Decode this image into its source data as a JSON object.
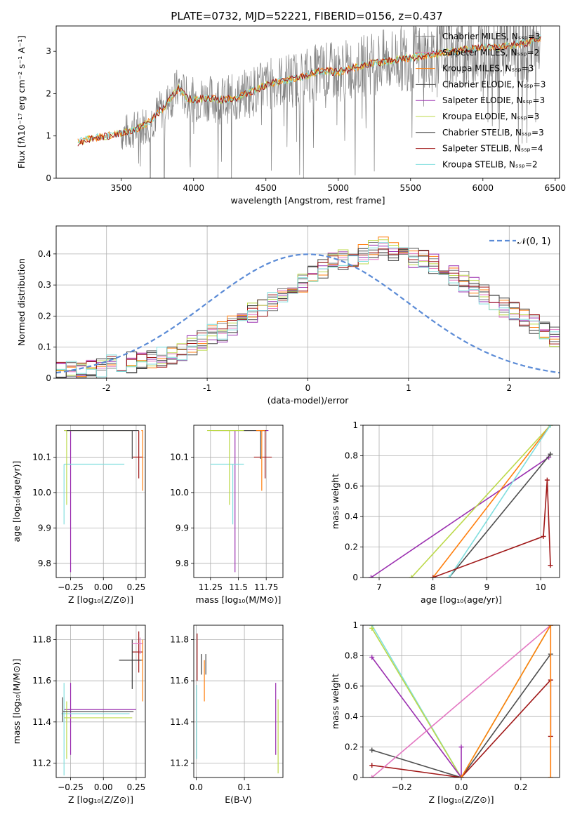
{
  "figure": {
    "title": "PLATE=0732, MJD=52221, FIBERID=0156, z=0.437"
  },
  "colors": {
    "chabrier_miles": "#7f7f7f",
    "salpeter_miles": "#e377c2",
    "kroupa_miles": "#ff7f0e",
    "chabrier_elodie": "#4d4d4d",
    "salpeter_elodie": "#9b30b0",
    "kroupa_elodie": "#bcd94a",
    "chabrier_stelib": "#3a3a3a",
    "salpeter_stelib": "#a01818",
    "kroupa_stelib": "#80dede",
    "normal": "#5b8bd6",
    "grid": "#b0b0b0"
  },
  "chart_data": [
    {
      "id": "spectrum",
      "type": "line",
      "xlabel": "wavelength [Angstrom, rest frame]",
      "ylabel": "Flux [fλ10⁻¹⁷ erg cm⁻² s⁻¹ A⁻¹]",
      "xlim": [
        3050,
        6530
      ],
      "ylim": [
        0,
        3.6
      ],
      "xticks": [
        3500,
        4000,
        4500,
        5000,
        5500,
        6000,
        6500
      ],
      "yticks": [
        0,
        1,
        2,
        3
      ],
      "legend": [
        "Chabrier MILES, Nₛₛₚ=3",
        "Salpeter MILES, Nₛₛₚ=2",
        "Kroupa MILES, Nₛₛₚ=3",
        "Chabrier ELODIE, Nₛₛₚ=3",
        "Salpeter ELODIE, Nₛₛₚ=3",
        "Kroupa ELODIE, Nₛₛₚ=3",
        "Chabrier STELIB, Nₛₛₚ=3",
        "Salpeter STELIB, Nₛₛₚ=4",
        "Kroupa STELIB, Nₛₛₚ=2"
      ],
      "legend_placement": "upper-right",
      "continuum": [
        [
          3200,
          0.85
        ],
        [
          3300,
          0.95
        ],
        [
          3400,
          1.0
        ],
        [
          3500,
          1.05
        ],
        [
          3600,
          1.15
        ],
        [
          3700,
          1.35
        ],
        [
          3800,
          1.7
        ],
        [
          3900,
          2.15
        ],
        [
          3950,
          1.9
        ],
        [
          4000,
          1.85
        ],
        [
          4100,
          1.9
        ],
        [
          4200,
          1.85
        ],
        [
          4300,
          1.9
        ],
        [
          4400,
          2.05
        ],
        [
          4500,
          2.2
        ],
        [
          4600,
          2.3
        ],
        [
          4700,
          2.35
        ],
        [
          4800,
          2.45
        ],
        [
          4900,
          2.55
        ],
        [
          5000,
          2.5
        ],
        [
          5100,
          2.6
        ],
        [
          5200,
          2.7
        ],
        [
          5300,
          2.75
        ],
        [
          5400,
          2.8
        ],
        [
          5500,
          2.85
        ],
        [
          5600,
          2.9
        ],
        [
          5700,
          2.95
        ],
        [
          5800,
          3.0
        ],
        [
          5900,
          3.05
        ],
        [
          6000,
          3.1
        ],
        [
          6100,
          3.1
        ],
        [
          6200,
          3.15
        ],
        [
          6300,
          3.2
        ],
        [
          6400,
          3.3
        ]
      ]
    },
    {
      "id": "residuals",
      "type": "step",
      "xlabel": "(data-model)/error",
      "ylabel": "Normed distribution",
      "xlim": [
        -2.5,
        2.5
      ],
      "ylim": [
        0,
        0.49
      ],
      "xticks": [
        -2,
        -1,
        0,
        1,
        2
      ],
      "yticks": [
        0.0,
        0.1,
        0.2,
        0.3,
        0.4
      ],
      "legend": [
        "𝒩(0, 1)"
      ],
      "legend_placement": "upper-right",
      "bin_width": 0.1,
      "base_hist": [
        0.02,
        0.02,
        0.03,
        0.03,
        0.03,
        0.04,
        0.04,
        0.05,
        0.05,
        0.06,
        0.07,
        0.08,
        0.09,
        0.11,
        0.12,
        0.14,
        0.15,
        0.17,
        0.19,
        0.21,
        0.23,
        0.25,
        0.27,
        0.29,
        0.31,
        0.33,
        0.35,
        0.37,
        0.38,
        0.39,
        0.4,
        0.41,
        0.42,
        0.41,
        0.4,
        0.39,
        0.38,
        0.37,
        0.35,
        0.33,
        0.31,
        0.29,
        0.27,
        0.25,
        0.23,
        0.21,
        0.19,
        0.17,
        0.15,
        0.13,
        0.12,
        0.1,
        0.09,
        0.08,
        0.07,
        0.06,
        0.05,
        0.05,
        0.04,
        0.04,
        0.03,
        0.03,
        0.03,
        0.02,
        0.02,
        0.02,
        0.02,
        0.02,
        0.02,
        0.02,
        0.02,
        0.02,
        0.02,
        0.02,
        0.02,
        0.02,
        0.02,
        0.02,
        0.02,
        0.02,
        0.02,
        0.02,
        0.02,
        0.02,
        0.02,
        0.02,
        0.02,
        0.02,
        0.02,
        0.02,
        0.02,
        0.02,
        0.02,
        0.02,
        0.02,
        0.02,
        0.02,
        0.02,
        0.02,
        0.02
      ]
    },
    {
      "id": "z_age",
      "type": "errorbar",
      "xlabel": "Z [log₁₀(Z/Z⊙)]",
      "ylabel": "age  [log₁₀(age/yr)]",
      "xlim": [
        -0.36,
        0.32
      ],
      "ylim": [
        9.76,
        10.19
      ],
      "xticks": [
        -0.25,
        0.0,
        0.25
      ],
      "xticklabels": [
        "−0.25",
        "0.00",
        "0.25"
      ],
      "yticks": [
        9.8,
        9.9,
        10.0,
        10.1
      ],
      "yticklabels": [
        "9.8",
        "9.9",
        "10.0",
        "10.1"
      ],
      "points": [
        {
          "series": "salpeter_elodie",
          "x": -0.25,
          "y": 10.175,
          "xerr": [
            0.05,
            0.5
          ],
          "yerr": [
            0.4,
            0
          ]
        },
        {
          "series": "kroupa_stelib",
          "x": -0.3,
          "y": 10.08,
          "xerr": [
            0,
            0.46
          ],
          "yerr": [
            0.17,
            0
          ]
        },
        {
          "series": "kroupa_elodie",
          "x": -0.28,
          "y": 10.175,
          "xerr": [
            0.02,
            0.5
          ],
          "yerr": [
            0.21,
            0
          ]
        },
        {
          "series": "salpeter_stelib",
          "x": 0.27,
          "y": 10.1,
          "xerr": [
            0.05,
            0.03
          ],
          "yerr": [
            0.06,
            0.075
          ]
        },
        {
          "series": "chabrier_elodie",
          "x": 0.22,
          "y": 10.175,
          "xerr": [
            0.5,
            0.05
          ],
          "yerr": [
            0.08,
            0
          ]
        },
        {
          "series": "kroupa_miles",
          "x": 0.3,
          "y": 10.175,
          "xerr": [
            0.01,
            0
          ],
          "yerr": [
            0.17,
            0
          ]
        }
      ]
    },
    {
      "id": "mass_age",
      "type": "errorbar",
      "xlabel": "mass [log₁₀(M/M⊙)]",
      "ylabel": "",
      "xlim": [
        11.1,
        11.9
      ],
      "ylim": [
        9.76,
        10.19
      ],
      "xticks": [
        11.25,
        11.5,
        11.75
      ],
      "yticks": [
        9.8,
        9.9,
        10.0,
        10.1
      ],
      "yticklabels": [
        "9.8",
        "9.9",
        "10.0",
        "10.1"
      ],
      "points": [
        {
          "series": "salpeter_elodie",
          "x": 11.47,
          "y": 10.175,
          "xerr": [
            0.2,
            0.3
          ],
          "yerr": [
            0.4,
            0
          ]
        },
        {
          "series": "kroupa_stelib",
          "x": 11.45,
          "y": 10.08,
          "xerr": [
            0.2,
            0.1
          ],
          "yerr": [
            0.17,
            0
          ]
        },
        {
          "series": "kroupa_elodie",
          "x": 11.42,
          "y": 10.175,
          "xerr": [
            0.2,
            0.2
          ],
          "yerr": [
            0.21,
            0
          ]
        },
        {
          "series": "salpeter_stelib",
          "x": 11.74,
          "y": 10.1,
          "xerr": [
            0.1,
            0.06
          ],
          "yerr": [
            0.06,
            0.075
          ]
        },
        {
          "series": "chabrier_elodie",
          "x": 11.7,
          "y": 10.175,
          "xerr": [
            0.15,
            0.05
          ],
          "yerr": [
            0.08,
            0
          ]
        },
        {
          "series": "kroupa_miles",
          "x": 11.71,
          "y": 10.175,
          "xerr": [
            0.05,
            0.03
          ],
          "yerr": [
            0.17,
            0
          ]
        }
      ]
    },
    {
      "id": "age_weight",
      "type": "line",
      "xlabel": "age  [log₁₀(age/yr)]",
      "ylabel": "mass weight",
      "xlim": [
        6.7,
        10.35
      ],
      "ylim": [
        0,
        1.0
      ],
      "xticks": [
        7,
        8,
        9,
        10
      ],
      "yticks": [
        0.0,
        0.2,
        0.4,
        0.6,
        0.8,
        1.0
      ],
      "series": [
        {
          "key": "salpeter_elodie",
          "points": [
            [
              6.85,
              0.0
            ],
            [
              10.15,
              0.79
            ]
          ]
        },
        {
          "key": "kroupa_elodie",
          "points": [
            [
              7.6,
              0.0
            ],
            [
              10.18,
              1.0
            ]
          ]
        },
        {
          "key": "kroupa_miles",
          "points": [
            [
              8.0,
              0.0
            ],
            [
              10.18,
              1.0
            ]
          ]
        },
        {
          "key": "chabrier_elodie",
          "points": [
            [
              8.3,
              0.0
            ],
            [
              10.18,
              0.81
            ]
          ]
        },
        {
          "key": "kroupa_stelib",
          "points": [
            [
              8.3,
              0.0
            ],
            [
              10.18,
              1.0
            ]
          ]
        },
        {
          "key": "salpeter_stelib",
          "points": [
            [
              8.0,
              0.0
            ],
            [
              10.05,
              0.27
            ],
            [
              10.12,
              0.64
            ],
            [
              10.18,
              0.08
            ]
          ]
        }
      ]
    },
    {
      "id": "z_mass",
      "type": "errorbar",
      "xlabel": "Z [log₁₀(Z/Z⊙)]",
      "ylabel": "mass [log₁₀(M/M⊙)]",
      "xlim": [
        -0.36,
        0.32
      ],
      "ylim": [
        11.13,
        11.87
      ],
      "xticks": [
        -0.25,
        0.0,
        0.25
      ],
      "xticklabels": [
        "−0.25",
        "0.00",
        "0.25"
      ],
      "yticks": [
        11.2,
        11.4,
        11.6,
        11.8
      ],
      "yticklabels": [
        "11.2",
        "11.4",
        "11.6",
        "11.8"
      ],
      "points": [
        {
          "series": "salpeter_elodie",
          "x": -0.25,
          "y": 11.46,
          "xerr": [
            0.05,
            0.5
          ],
          "yerr": [
            0.22,
            0.13
          ]
        },
        {
          "series": "kroupa_stelib",
          "x": -0.3,
          "y": 11.44,
          "xerr": [
            0.02,
            0.5
          ],
          "yerr": [
            0.3,
            0.15
          ]
        },
        {
          "series": "kroupa_elodie",
          "x": -0.28,
          "y": 11.42,
          "xerr": [
            0.02,
            0.5
          ],
          "yerr": [
            0.2,
            0.08
          ]
        },
        {
          "series": "chabrier_elodie",
          "x": -0.31,
          "y": 11.45,
          "xerr": [
            0,
            0.54
          ],
          "yerr": [
            0.05,
            0.07
          ]
        },
        {
          "series": "salpeter_stelib",
          "x": 0.27,
          "y": 11.74,
          "xerr": [
            0.05,
            0.03
          ],
          "yerr": [
            0.1,
            0.1
          ]
        },
        {
          "series": "chabrier_stelib",
          "x": 0.22,
          "y": 11.7,
          "xerr": [
            0.1,
            0.08
          ],
          "yerr": [
            0.14,
            0.1
          ]
        },
        {
          "series": "kroupa_miles",
          "x": 0.3,
          "y": 11.7,
          "xerr": [
            0.01,
            0
          ],
          "yerr": [
            0.2,
            0.1
          ]
        },
        {
          "series": "salpeter_miles",
          "x": 0.28,
          "y": 11.78,
          "xerr": [
            0.06,
            0.02
          ],
          "yerr": [
            0.05,
            0.03
          ]
        }
      ]
    },
    {
      "id": "ebv_mass",
      "type": "errorbar",
      "xlabel": "E(B-V)",
      "ylabel": "",
      "xlim": [
        -0.005,
        0.18
      ],
      "ylim": [
        11.13,
        11.87
      ],
      "xticks": [
        0.0,
        0.1
      ],
      "xticklabels": [
        "0.0",
        "0.1"
      ],
      "yticks": [
        11.2,
        11.4,
        11.6,
        11.8
      ],
      "yticklabels": [
        "11.2",
        "11.4",
        "11.6",
        "11.8"
      ],
      "points": [
        {
          "series": "salpeter_stelib",
          "x": 0.002,
          "y": 11.7,
          "xerr": [
            0,
            0
          ],
          "yerr": [
            0.1,
            0.13
          ]
        },
        {
          "series": "kroupa_stelib",
          "x": 0.001,
          "y": 11.4,
          "xerr": [
            0,
            0
          ],
          "yerr": [
            0.18,
            0.18
          ]
        },
        {
          "series": "chabrier_stelib",
          "x": 0.011,
          "y": 11.68,
          "xerr": [
            0,
            0
          ],
          "yerr": [
            0.05,
            0.05
          ]
        },
        {
          "series": "kroupa_miles",
          "x": 0.017,
          "y": 11.6,
          "xerr": [
            0,
            0
          ],
          "yerr": [
            0.1,
            0.1
          ]
        },
        {
          "series": "chabrier_elodie",
          "x": 0.02,
          "y": 11.67,
          "xerr": [
            0,
            0
          ],
          "yerr": [
            0.04,
            0.06
          ]
        },
        {
          "series": "salpeter_elodie",
          "x": 0.165,
          "y": 11.42,
          "xerr": [
            0,
            0
          ],
          "yerr": [
            0.18,
            0.17
          ]
        },
        {
          "series": "kroupa_elodie",
          "x": 0.17,
          "y": 11.35,
          "xerr": [
            0,
            0
          ],
          "yerr": [
            0.2,
            0.16
          ]
        }
      ]
    },
    {
      "id": "z_weight",
      "type": "line",
      "xlabel": "Z [log₁₀(Z/Z⊙)]",
      "ylabel": "mass weight",
      "xlim": [
        -0.33,
        0.33
      ],
      "ylim": [
        0,
        1.0
      ],
      "xticks": [
        -0.2,
        0.0,
        0.2
      ],
      "xticklabels": [
        "−0.2",
        "0.0",
        "0.2"
      ],
      "yticks": [
        0.0,
        0.2,
        0.4,
        0.6,
        0.8,
        1.0
      ],
      "series": [
        {
          "key": "kroupa_stelib",
          "points": [
            [
              -0.3,
              1.0
            ],
            [
              0.0,
              0.0
            ],
            [
              0.3,
              1.0
            ]
          ]
        },
        {
          "key": "kroupa_elodie",
          "points": [
            [
              -0.3,
              0.98
            ],
            [
              0.0,
              0.0
            ],
            [
              0.3,
              1.0
            ]
          ]
        },
        {
          "key": "salpeter_elodie",
          "points": [
            [
              -0.3,
              0.79
            ],
            [
              0.0,
              0.0
            ],
            [
              0.0,
              0.2
            ]
          ]
        },
        {
          "key": "chabrier_elodie",
          "points": [
            [
              -0.3,
              0.18
            ],
            [
              0.0,
              0.0
            ],
            [
              0.3,
              0.81
            ]
          ]
        },
        {
          "key": "salpeter_stelib",
          "points": [
            [
              -0.3,
              0.08
            ],
            [
              0.0,
              0.0
            ],
            [
              0.3,
              0.64
            ],
            [
              0.3,
              0.27
            ]
          ]
        },
        {
          "key": "salpeter_miles",
          "points": [
            [
              -0.3,
              0.0
            ],
            [
              0.3,
              1.0
            ]
          ]
        },
        {
          "key": "kroupa_miles",
          "points": [
            [
              0.0,
              0.0
            ],
            [
              0.3,
              1.0
            ],
            [
              0.3,
              0.0
            ]
          ]
        }
      ]
    }
  ]
}
